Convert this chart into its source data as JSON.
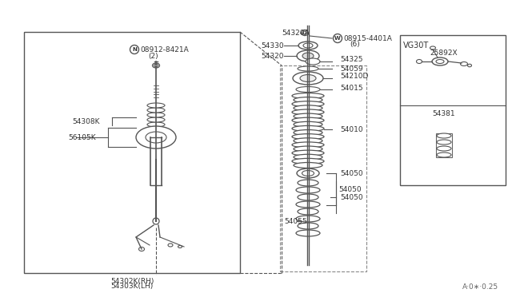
{
  "bg_color": "#ffffff",
  "line_color": "#555555",
  "text_color": "#333333",
  "watermark": "A·0∗·0.25",
  "parts": {
    "bolt_top": "08912-8421A",
    "bolt_top2": "(2)",
    "strut_label1": "54308K",
    "strut_label2": "56105K",
    "bottom_label1": "54302K(RH)",
    "bottom_label2": "54303K(LH)",
    "spring_top": "54320A",
    "nut_label1": "08915-4401A",
    "nut_label2": "(6)",
    "p54330": "54330",
    "p54320": "54320",
    "p54325": "54325",
    "p54059": "54059",
    "p54210D": "54210D",
    "p54015": "54015",
    "p54010": "54010",
    "p54050": "54050",
    "p54055": "54055",
    "vg30t": "VG30T",
    "p25892X": "25892X",
    "p54381": "54381"
  }
}
